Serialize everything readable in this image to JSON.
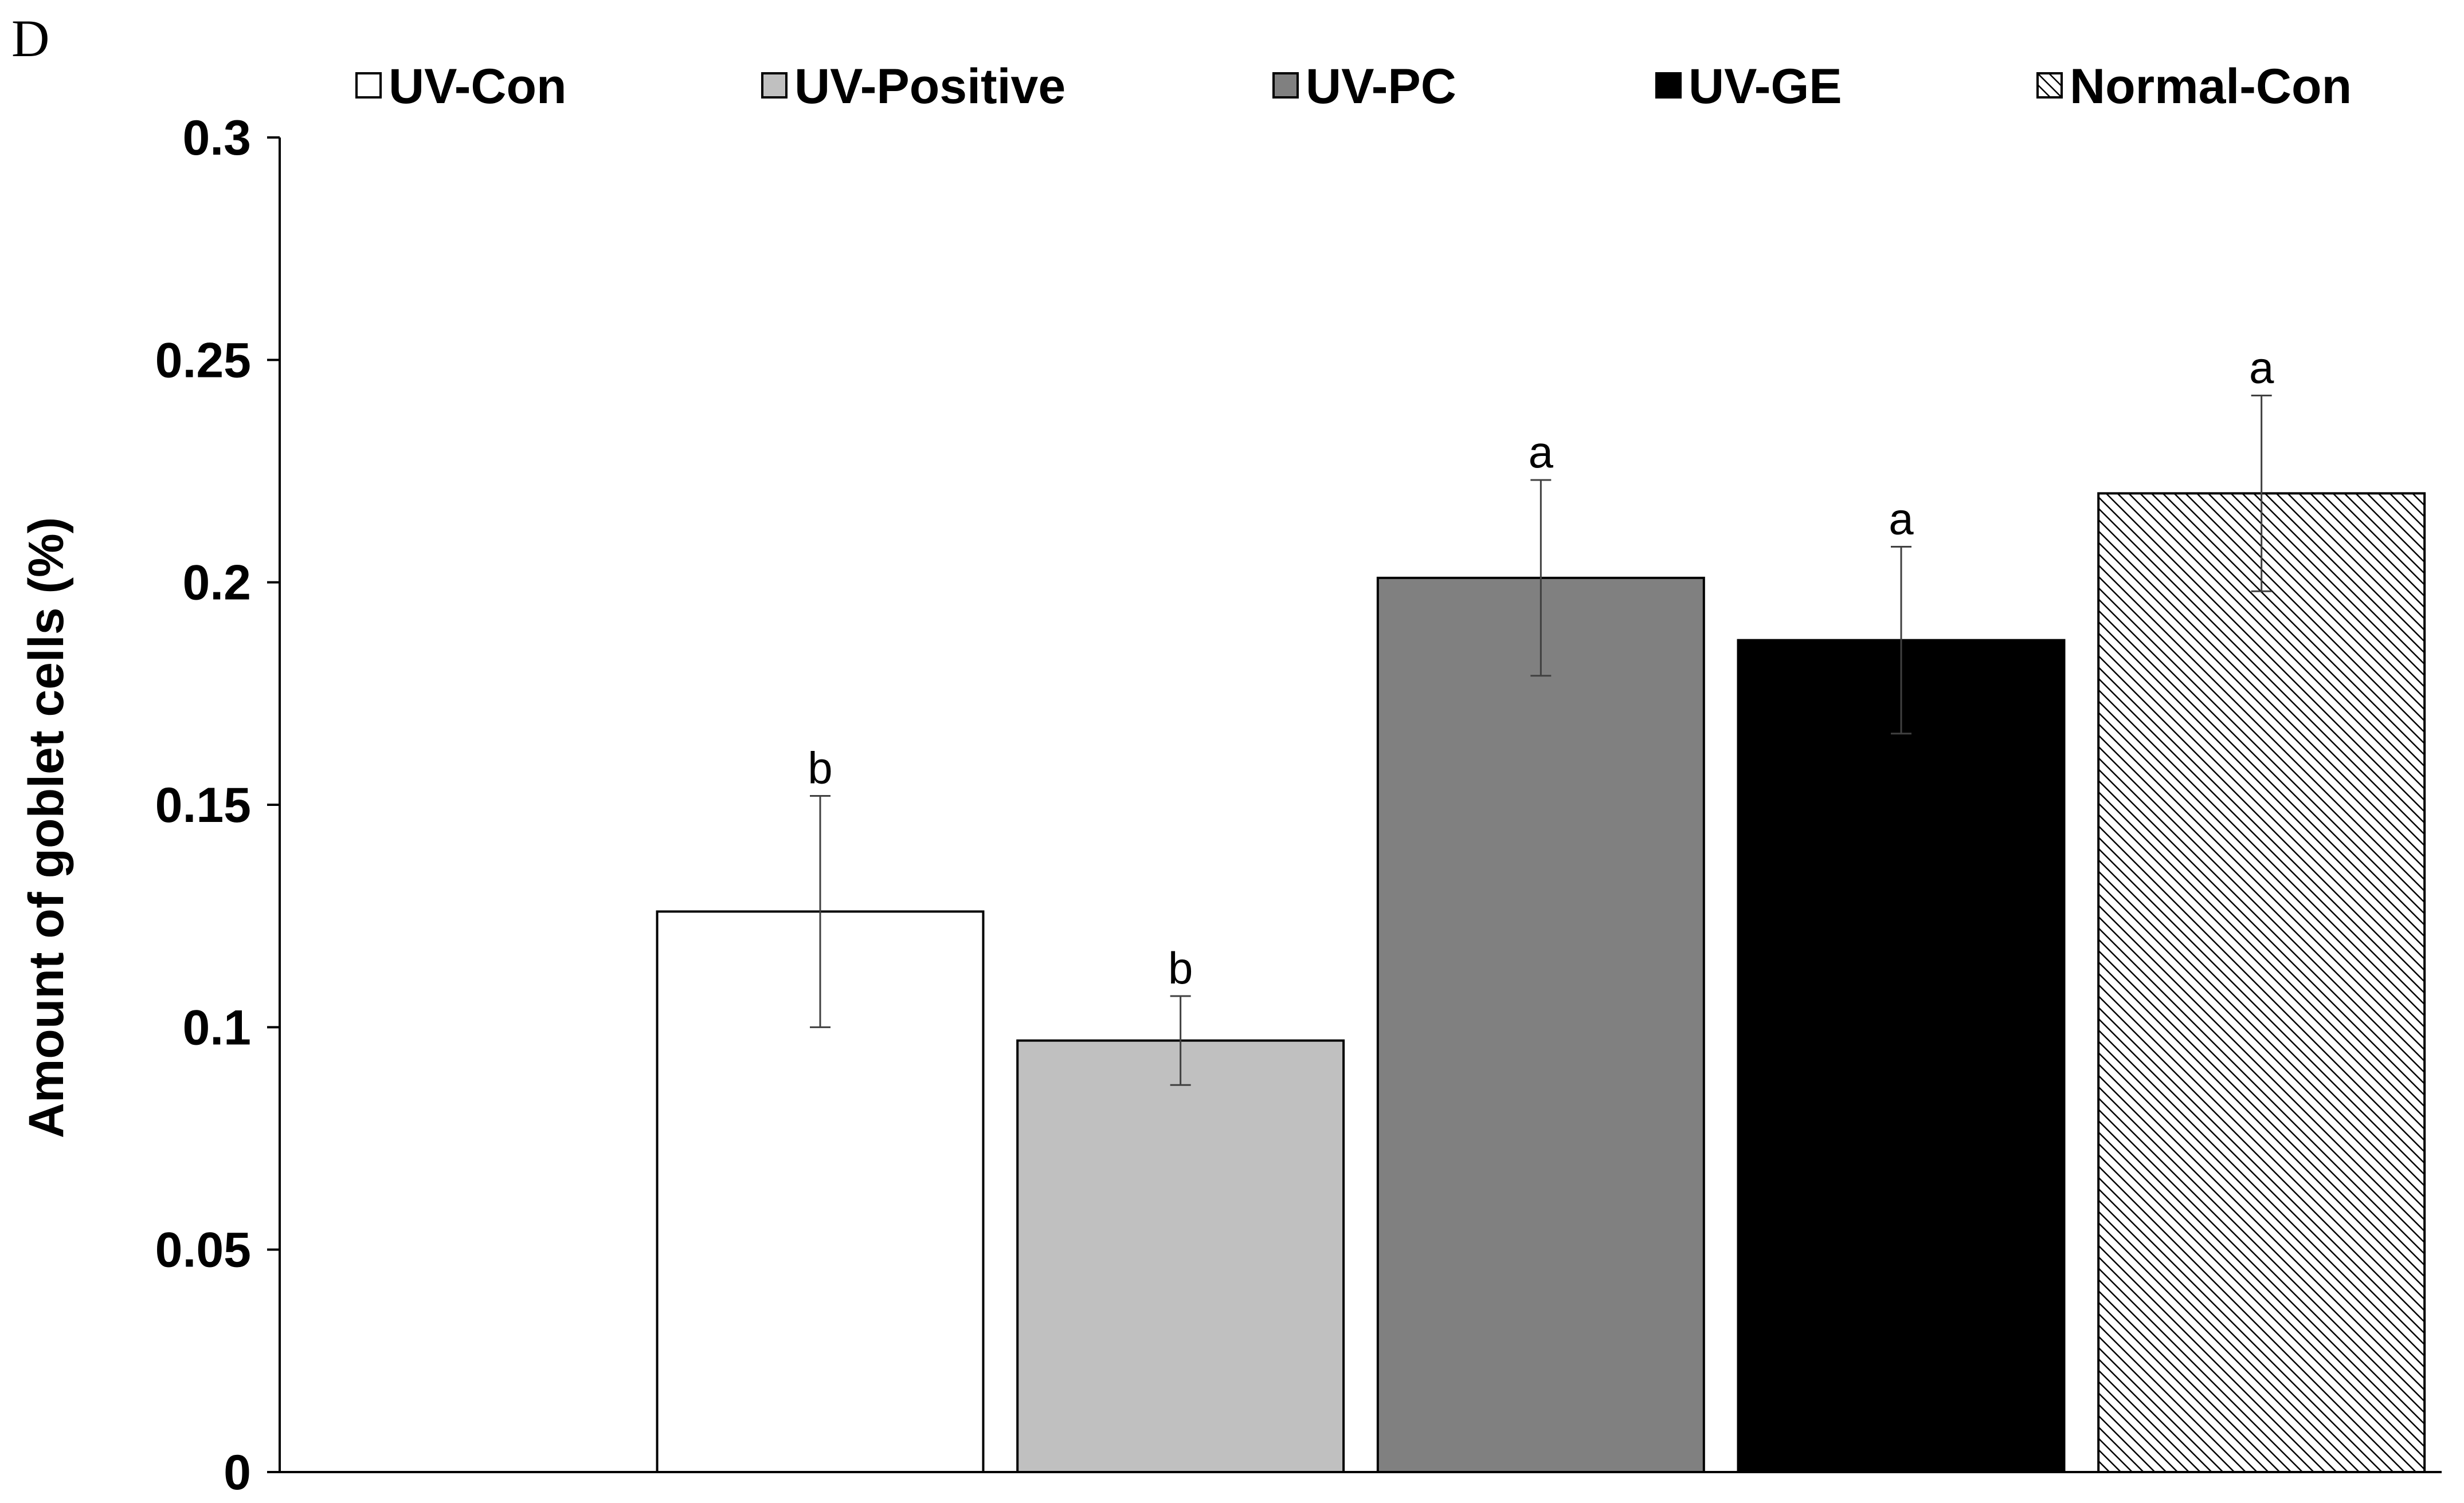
{
  "panel_label": "D",
  "chart_data": {
    "type": "bar",
    "title": "",
    "xlabel": "",
    "ylabel": "Amount of goblet cells (%)",
    "ylim": [
      0,
      0.3
    ],
    "yticks": [
      0,
      0.05,
      0.1,
      0.15,
      0.2,
      0.25,
      0.3
    ],
    "ytick_labels": [
      "0",
      "0.05",
      "0.1",
      "0.15",
      "0.2",
      "0.25",
      "0.3"
    ],
    "grid": false,
    "legend_position": "top",
    "categories": [
      "",
      "UV-Con",
      "UV-Positive",
      "UV-PC",
      "UV-GE",
      "Normal-Con"
    ],
    "series": [
      {
        "name": "UV-Con",
        "value": 0.126,
        "error": 0.026,
        "significance": "b",
        "fill": "#ffffff",
        "pattern": "none"
      },
      {
        "name": "UV-Positive",
        "value": 0.097,
        "error": 0.01,
        "significance": "b",
        "fill": "#c0c0c0",
        "pattern": "none"
      },
      {
        "name": "UV-PC",
        "value": 0.201,
        "error": 0.022,
        "significance": "a",
        "fill": "#808080",
        "pattern": "none"
      },
      {
        "name": "UV-GE",
        "value": 0.187,
        "error": 0.021,
        "significance": "a",
        "fill": "#000000",
        "pattern": "none"
      },
      {
        "name": "Normal-Con",
        "value": 0.22,
        "error": 0.022,
        "significance": "a",
        "fill": "#ffffff",
        "pattern": "diagonal-hatch"
      }
    ]
  }
}
